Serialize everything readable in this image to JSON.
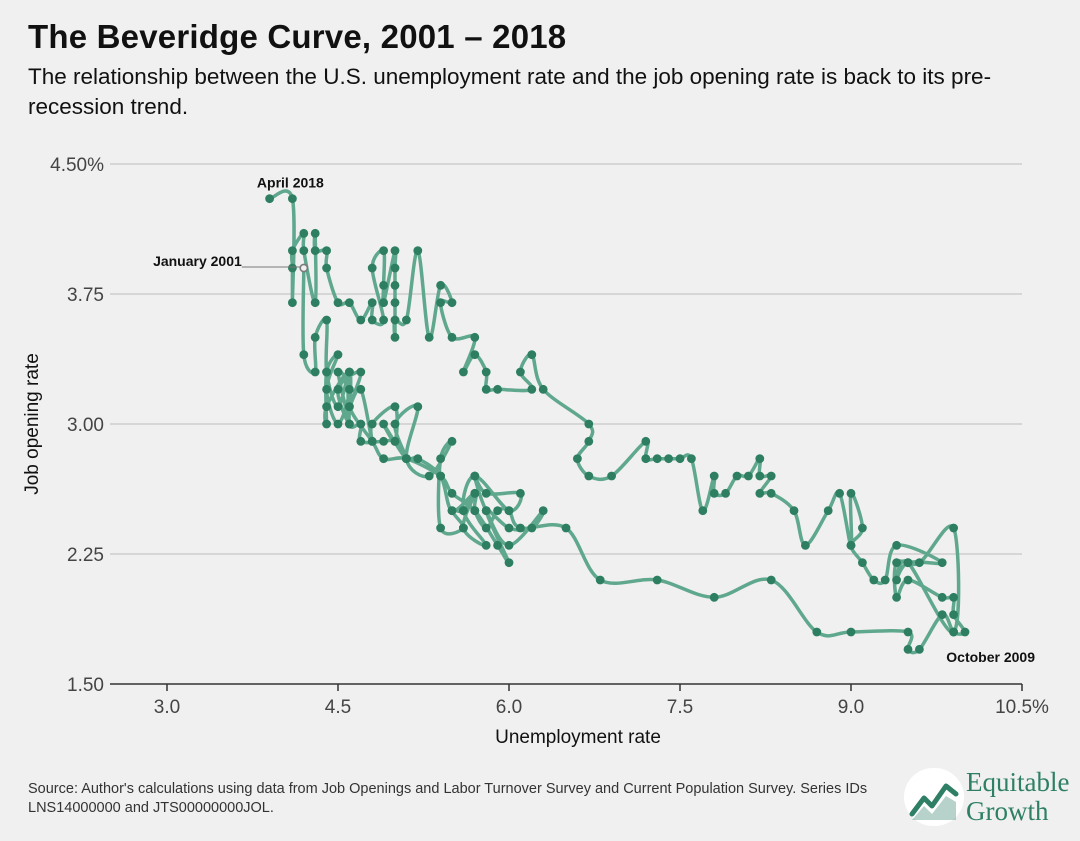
{
  "header": {
    "title": "The Beveridge Curve, 2001 – 2018",
    "subtitle": "The relationship between the U.S. unemployment rate and the job opening rate is back to its pre-recession trend."
  },
  "footer": {
    "source": "Source: Author's calculations using data from Job Openings and Labor Turnover Survey and Current Population Survey. Series IDs LNS14000000 and JTS00000000JOL."
  },
  "logo": {
    "line1": "Equitable",
    "line2": "Growth",
    "icon": "rising-chart-logo-icon"
  },
  "colors": {
    "line": "#5fa88e",
    "marker": "#2e7f62",
    "grid": "#bdbdbd",
    "background": "#f0f0f0",
    "logo": "#2e7f66"
  },
  "chart_data": {
    "type": "line",
    "xlabel": "Unemployment rate",
    "ylabel": "Job opening rate",
    "xlim": [
      2.5,
      10.5
    ],
    "ylim": [
      1.5,
      4.5
    ],
    "x_ticks": [
      3.0,
      4.5,
      6.0,
      7.5,
      9.0,
      10.5
    ],
    "x_tick_labels": [
      "3.0",
      "4.5",
      "6.0",
      "7.5",
      "9.0",
      "10.5%"
    ],
    "y_ticks": [
      1.5,
      2.25,
      3.0,
      3.75,
      4.5
    ],
    "y_tick_labels": [
      "1.50",
      "2.25",
      "3.00",
      "3.75",
      "4.50%"
    ],
    "grid": "horizontal",
    "annotations": [
      {
        "text": "April 2018",
        "x": 4.1,
        "y": 4.3
      },
      {
        "text": "January 2001",
        "x": 4.2,
        "y": 3.9
      },
      {
        "text": "October 2009",
        "x": 10.0,
        "y": 1.8
      }
    ],
    "series": [
      {
        "points": [
          [
            4.2,
            3.9
          ],
          [
            4.2,
            3.4
          ],
          [
            4.3,
            3.3
          ],
          [
            4.3,
            3.5
          ],
          [
            4.4,
            3.6
          ],
          [
            4.4,
            3.3
          ],
          [
            4.5,
            3.1
          ],
          [
            4.6,
            3.3
          ],
          [
            4.6,
            3.1
          ],
          [
            4.8,
            2.9
          ],
          [
            4.9,
            2.8
          ],
          [
            5.1,
            2.8
          ],
          [
            5.4,
            2.7
          ],
          [
            5.5,
            2.6
          ],
          [
            5.7,
            2.5
          ],
          [
            5.9,
            2.3
          ],
          [
            6.0,
            2.2
          ],
          [
            5.8,
            2.5
          ],
          [
            6.0,
            2.4
          ],
          [
            6.2,
            2.4
          ],
          [
            6.3,
            2.5
          ],
          [
            6.0,
            2.3
          ],
          [
            5.8,
            2.5
          ],
          [
            5.7,
            2.7
          ],
          [
            5.8,
            2.6
          ],
          [
            6.1,
            2.6
          ],
          [
            6.0,
            2.5
          ],
          [
            5.7,
            2.7
          ],
          [
            5.6,
            2.5
          ],
          [
            5.8,
            2.3
          ],
          [
            5.6,
            2.4
          ],
          [
            5.7,
            2.6
          ],
          [
            5.6,
            2.5
          ],
          [
            5.5,
            2.5
          ],
          [
            5.6,
            2.4
          ],
          [
            5.4,
            2.4
          ],
          [
            5.4,
            2.8
          ],
          [
            5.5,
            2.9
          ],
          [
            5.3,
            2.7
          ],
          [
            5.1,
            2.8
          ],
          [
            5.2,
            3.1
          ],
          [
            5.0,
            3.0
          ],
          [
            5.1,
            2.8
          ],
          [
            4.9,
            3.0
          ],
          [
            5.0,
            2.9
          ],
          [
            5.0,
            3.1
          ],
          [
            4.8,
            3.0
          ],
          [
            4.8,
            2.9
          ],
          [
            4.7,
            3.2
          ],
          [
            4.6,
            3.1
          ],
          [
            4.7,
            3.3
          ],
          [
            4.5,
            3.2
          ],
          [
            4.6,
            3.0
          ],
          [
            4.5,
            3.3
          ],
          [
            4.6,
            3.2
          ],
          [
            4.5,
            3.0
          ],
          [
            4.4,
            3.2
          ],
          [
            4.5,
            3.4
          ],
          [
            4.4,
            3.3
          ],
          [
            4.4,
            3.0
          ],
          [
            4.4,
            3.1
          ],
          [
            4.6,
            3.3
          ],
          [
            4.6,
            3.0
          ],
          [
            4.7,
            3.0
          ],
          [
            4.7,
            2.9
          ],
          [
            4.9,
            2.9
          ],
          [
            5.0,
            2.9
          ],
          [
            5.1,
            2.8
          ],
          [
            5.2,
            2.8
          ],
          [
            5.4,
            2.7
          ],
          [
            5.5,
            2.5
          ],
          [
            5.7,
            2.6
          ],
          [
            5.7,
            2.5
          ],
          [
            5.8,
            2.4
          ],
          [
            5.9,
            2.5
          ],
          [
            6.0,
            2.5
          ],
          [
            6.1,
            2.4
          ],
          [
            6.5,
            2.4
          ],
          [
            6.8,
            2.1
          ],
          [
            7.3,
            2.1
          ],
          [
            7.8,
            2.0
          ],
          [
            8.3,
            2.1
          ],
          [
            8.7,
            1.8
          ],
          [
            9.0,
            1.8
          ],
          [
            9.5,
            1.8
          ],
          [
            9.5,
            1.7
          ],
          [
            9.6,
            1.7
          ],
          [
            9.8,
            1.9
          ],
          [
            9.9,
            1.8
          ],
          [
            10.0,
            1.8
          ],
          [
            9.9,
            1.9
          ],
          [
            9.9,
            2.0
          ],
          [
            9.8,
            2.0
          ],
          [
            9.5,
            2.1
          ],
          [
            9.4,
            2.0
          ],
          [
            9.4,
            2.2
          ],
          [
            9.6,
            2.2
          ],
          [
            9.9,
            2.4
          ],
          [
            9.9,
            1.8
          ],
          [
            9.5,
            2.2
          ],
          [
            9.4,
            2.1
          ],
          [
            9.5,
            2.2
          ],
          [
            9.8,
            2.2
          ],
          [
            9.4,
            2.3
          ],
          [
            9.3,
            2.1
          ],
          [
            9.2,
            2.1
          ],
          [
            9.1,
            2.2
          ],
          [
            9.0,
            2.3
          ],
          [
            9.1,
            2.4
          ],
          [
            9.0,
            2.6
          ],
          [
            9.0,
            2.3
          ],
          [
            8.9,
            2.6
          ],
          [
            8.8,
            2.5
          ],
          [
            8.6,
            2.3
          ],
          [
            8.5,
            2.5
          ],
          [
            8.3,
            2.6
          ],
          [
            8.2,
            2.6
          ],
          [
            8.3,
            2.7
          ],
          [
            8.2,
            2.7
          ],
          [
            8.2,
            2.8
          ],
          [
            8.1,
            2.7
          ],
          [
            8.0,
            2.7
          ],
          [
            7.9,
            2.6
          ],
          [
            7.8,
            2.6
          ],
          [
            7.8,
            2.7
          ],
          [
            7.7,
            2.5
          ],
          [
            7.6,
            2.8
          ],
          [
            7.5,
            2.8
          ],
          [
            7.4,
            2.8
          ],
          [
            7.3,
            2.8
          ],
          [
            7.2,
            2.8
          ],
          [
            7.2,
            2.9
          ],
          [
            6.9,
            2.7
          ],
          [
            6.7,
            2.7
          ],
          [
            6.6,
            2.8
          ],
          [
            6.7,
            2.9
          ],
          [
            6.7,
            3.0
          ],
          [
            6.3,
            3.2
          ],
          [
            6.2,
            3.4
          ],
          [
            6.1,
            3.3
          ],
          [
            6.2,
            3.2
          ],
          [
            5.9,
            3.2
          ],
          [
            5.8,
            3.2
          ],
          [
            5.8,
            3.3
          ],
          [
            5.7,
            3.4
          ],
          [
            5.6,
            3.3
          ],
          [
            5.7,
            3.5
          ],
          [
            5.5,
            3.5
          ],
          [
            5.4,
            3.7
          ],
          [
            5.5,
            3.7
          ],
          [
            5.4,
            3.8
          ],
          [
            5.3,
            3.5
          ],
          [
            5.2,
            4.0
          ],
          [
            5.1,
            3.6
          ],
          [
            5.0,
            3.6
          ],
          [
            5.0,
            3.5
          ],
          [
            5.0,
            3.7
          ],
          [
            5.0,
            3.8
          ],
          [
            5.0,
            3.9
          ],
          [
            5.0,
            4.0
          ],
          [
            4.9,
            3.7
          ],
          [
            4.9,
            3.8
          ],
          [
            4.9,
            4.0
          ],
          [
            4.8,
            3.9
          ],
          [
            4.9,
            3.6
          ],
          [
            4.8,
            3.6
          ],
          [
            4.8,
            3.7
          ],
          [
            4.7,
            3.6
          ],
          [
            4.6,
            3.7
          ],
          [
            4.5,
            3.7
          ],
          [
            4.4,
            3.9
          ],
          [
            4.4,
            4.0
          ],
          [
            4.3,
            4.0
          ],
          [
            4.3,
            4.1
          ],
          [
            4.3,
            3.7
          ],
          [
            4.2,
            4.0
          ],
          [
            4.2,
            4.1
          ],
          [
            4.1,
            4.0
          ],
          [
            4.1,
            3.9
          ],
          [
            4.1,
            3.7
          ],
          [
            4.1,
            4.3
          ],
          [
            3.9,
            4.3
          ]
        ]
      }
    ]
  }
}
